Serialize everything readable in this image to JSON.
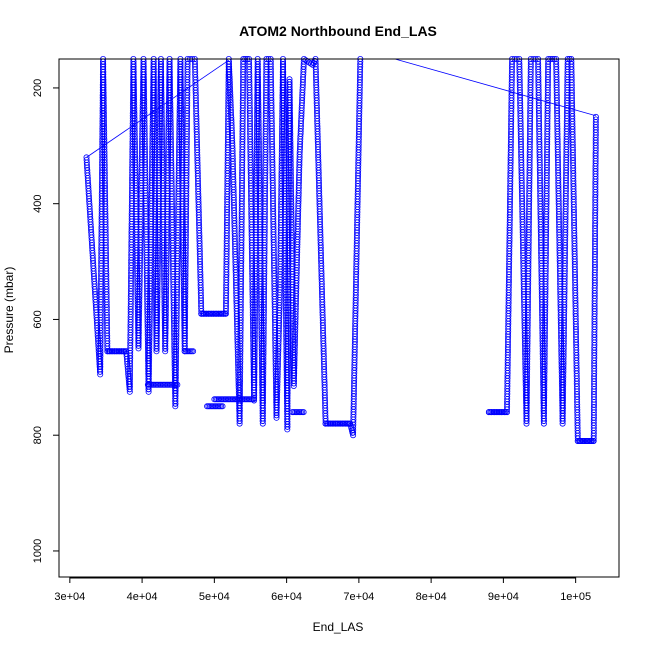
{
  "chart_data": {
    "type": "scatter",
    "title": "ATOM2 Northbound End_LAS",
    "xlabel": "End_LAS",
    "ylabel": "Pressure (mbar)",
    "xlim": [
      28500,
      106000
    ],
    "ylim": [
      1045,
      150
    ],
    "y_reversed": true,
    "x_ticks": [
      30000,
      40000,
      50000,
      60000,
      70000,
      80000,
      90000,
      100000
    ],
    "x_tick_labels": [
      "3e+04",
      "4e+04",
      "5e+04",
      "6e+04",
      "7e+04",
      "8e+04",
      "9e+04",
      "1e+05"
    ],
    "y_ticks": [
      200,
      400,
      600,
      800,
      1000
    ],
    "y_tick_labels": [
      "200",
      "400",
      "600",
      "800",
      "1000"
    ],
    "grid": false,
    "legend": "none",
    "marker": "open-circle",
    "color": "#0000ff",
    "series": [
      {
        "profile_breakpoints": [
          [
            32300,
            320
          ],
          [
            34200,
            695
          ],
          [
            34600,
            150
          ],
          [
            35200,
            655
          ],
          [
            37800,
            655
          ],
          [
            38300,
            725
          ],
          [
            38800,
            150
          ],
          [
            39500,
            650
          ],
          [
            40200,
            150
          ],
          [
            40900,
            725
          ],
          [
            41600,
            150
          ],
          [
            42000,
            655
          ],
          [
            42600,
            150
          ],
          [
            43200,
            655
          ],
          [
            43800,
            150
          ],
          [
            44600,
            750
          ],
          [
            45300,
            150
          ],
          [
            45900,
            655
          ],
          [
            46300,
            150
          ],
          [
            47300,
            150
          ],
          [
            48200,
            590
          ],
          [
            51600,
            590
          ],
          [
            52000,
            150
          ],
          [
            52500,
            300
          ],
          [
            53100,
            590
          ],
          [
            53500,
            780
          ],
          [
            54000,
            150
          ],
          [
            54800,
            150
          ],
          [
            55500,
            740
          ],
          [
            56000,
            150
          ],
          [
            56700,
            780
          ],
          [
            57200,
            150
          ],
          [
            57800,
            150
          ],
          [
            58600,
            770
          ],
          [
            59100,
            540
          ],
          [
            59500,
            150
          ],
          [
            60100,
            790
          ],
          [
            60400,
            185
          ],
          [
            61000,
            715
          ],
          [
            61800,
            315
          ],
          [
            62400,
            150
          ],
          [
            63600,
            160
          ],
          [
            64000,
            150
          ],
          [
            65400,
            780
          ],
          [
            68800,
            780
          ],
          [
            69200,
            800
          ],
          [
            70200,
            150
          ]
        ]
      },
      {
        "profile_breakpoints": [
          [
            88000,
            760
          ],
          [
            90500,
            760
          ],
          [
            91200,
            150
          ],
          [
            92200,
            150
          ],
          [
            93200,
            780
          ],
          [
            93800,
            150
          ],
          [
            94800,
            150
          ],
          [
            95600,
            780
          ],
          [
            96200,
            150
          ],
          [
            97300,
            150
          ],
          [
            98200,
            780
          ],
          [
            98900,
            150
          ],
          [
            99400,
            150
          ],
          [
            100300,
            810
          ],
          [
            102500,
            810
          ],
          [
            102800,
            250
          ]
        ]
      }
    ],
    "flat_runs": [
      {
        "x": [
          35200,
          37800
        ],
        "y": 655
      },
      {
        "x": [
          40800,
          45000
        ],
        "y": 713
      },
      {
        "x": [
          45900,
          47200
        ],
        "y": 655
      },
      {
        "x": [
          48200,
          51600
        ],
        "y": 590
      },
      {
        "x": [
          49000,
          51200
        ],
        "y": 750
      },
      {
        "x": [
          50000,
          55500
        ],
        "y": 738
      },
      {
        "x": [
          60800,
          62500
        ],
        "y": 760
      },
      {
        "x": [
          65400,
          68800
        ],
        "y": 780
      },
      {
        "x": [
          88000,
          90500
        ],
        "y": 760
      },
      {
        "x": [
          100300,
          102500
        ],
        "y": 810
      }
    ],
    "connector_lines": [
      [
        [
          32300,
          320
        ],
        [
          52000,
          152
        ]
      ],
      [
        [
          75000,
          150
        ],
        [
          102800,
          248
        ]
      ]
    ]
  }
}
